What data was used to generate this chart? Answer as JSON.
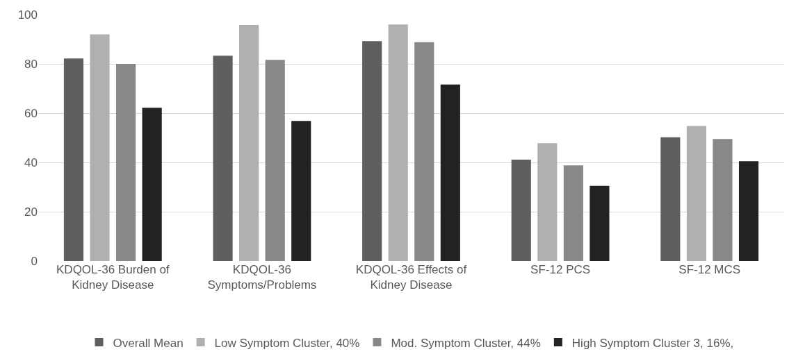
{
  "chart_data": {
    "type": "bar",
    "categories": [
      "KDQOL-36 Burden of Kidney Disease",
      "KDQOL-36 Symptoms/Problems",
      "KDQOL-36 Effects of Kidney Disease",
      "SF-12 PCS",
      "SF-12 MCS"
    ],
    "series": [
      {
        "name": "Overall Mean",
        "color": "#5f5f5f",
        "values": [
          82.2,
          83.3,
          89.2,
          41.1,
          50.2
        ]
      },
      {
        "name": "Low Symptom Cluster, 40%",
        "color": "#b0b0b0",
        "values": [
          92,
          95.8,
          96,
          47.8,
          54.8
        ]
      },
      {
        "name": "Mod. Symptom Cluster, 44%",
        "color": "#888888",
        "values": [
          80,
          81.6,
          88.8,
          38.8,
          49.5
        ]
      },
      {
        "name": "High Symptom Cluster 3, 16%,",
        "color": "#222222",
        "values": [
          62.2,
          56.8,
          71.6,
          30.5,
          40.5
        ]
      }
    ],
    "ylim": [
      0,
      100
    ],
    "yticks": [
      0,
      20,
      40,
      60,
      80,
      100
    ],
    "grid": "y",
    "legend": "bottom"
  }
}
